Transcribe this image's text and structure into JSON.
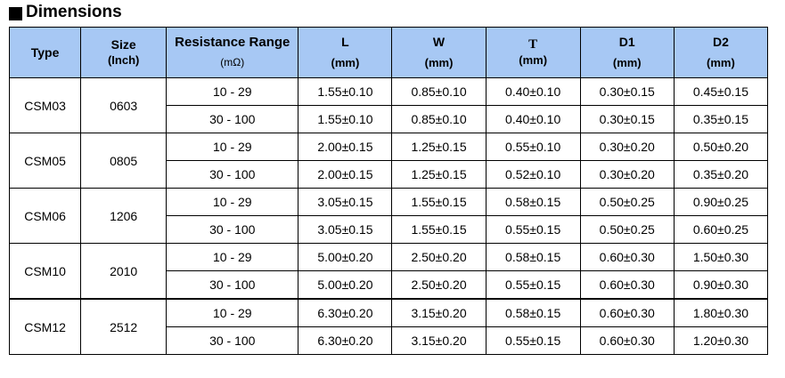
{
  "title": "Dimensions",
  "headers": {
    "type": "Type",
    "size_1": "Size",
    "size_2": "(Inch)",
    "range_1": "Resistance Range",
    "range_2": "(mΩ)",
    "l_1": "L",
    "l_2": "(mm)",
    "w_1": "W",
    "w_2": "(mm)",
    "t_1": "T",
    "t_2": "(mm)",
    "d1_1": "D1",
    "d1_2": "(mm)",
    "d2_1": "D2",
    "d2_2": "(mm)"
  },
  "groups": [
    {
      "type": "CSM03",
      "size": "0603",
      "rows": [
        {
          "range": "10 - 29",
          "L": "1.55±0.10",
          "W": "0.85±0.10",
          "T": "0.40±0.10",
          "D1": "0.30±0.15",
          "D2": "0.45±0.15"
        },
        {
          "range": "30 - 100",
          "L": "1.55±0.10",
          "W": "0.85±0.10",
          "T": "0.40±0.10",
          "D1": "0.30±0.15",
          "D2": "0.35±0.15"
        }
      ]
    },
    {
      "type": "CSM05",
      "size": "0805",
      "rows": [
        {
          "range": "10 - 29",
          "L": "2.00±0.15",
          "W": "1.25±0.15",
          "T": "0.55±0.10",
          "D1": "0.30±0.20",
          "D2": "0.50±0.20"
        },
        {
          "range": "30 - 100",
          "L": "2.00±0.15",
          "W": "1.25±0.15",
          "T": "0.52±0.10",
          "D1": "0.30±0.20",
          "D2": "0.35±0.20"
        }
      ]
    },
    {
      "type": "CSM06",
      "size": "1206",
      "rows": [
        {
          "range": "10 - 29",
          "L": "3.05±0.15",
          "W": "1.55±0.15",
          "T": "0.58±0.15",
          "D1": "0.50±0.25",
          "D2": "0.90±0.25"
        },
        {
          "range": "30 - 100",
          "L": "3.05±0.15",
          "W": "1.55±0.15",
          "T": "0.55±0.15",
          "D1": "0.50±0.25",
          "D2": "0.60±0.25"
        }
      ]
    },
    {
      "type": "CSM10",
      "size": "2010",
      "rows": [
        {
          "range": "10 - 29",
          "L": "5.00±0.20",
          "W": "2.50±0.20",
          "T": "0.58±0.15",
          "D1": "0.60±0.30",
          "D2": "1.50±0.30"
        },
        {
          "range": "30 - 100",
          "L": "5.00±0.20",
          "W": "2.50±0.20",
          "T": "0.55±0.15",
          "D1": "0.60±0.30",
          "D2": "0.90±0.30"
        }
      ]
    },
    {
      "type": "CSM12",
      "size": "2512",
      "rows": [
        {
          "range": "10 - 29",
          "L": "6.30±0.20",
          "W": "3.15±0.20",
          "T": "0.58±0.15",
          "D1": "0.60±0.30",
          "D2": "1.80±0.30"
        },
        {
          "range": "30 - 100",
          "L": "6.30±0.20",
          "W": "3.15±0.20",
          "T": "0.55±0.15",
          "D1": "0.60±0.30",
          "D2": "1.20±0.30"
        }
      ]
    }
  ],
  "colors": {
    "header_bg": "#a7c8f4",
    "border": "#000000"
  }
}
